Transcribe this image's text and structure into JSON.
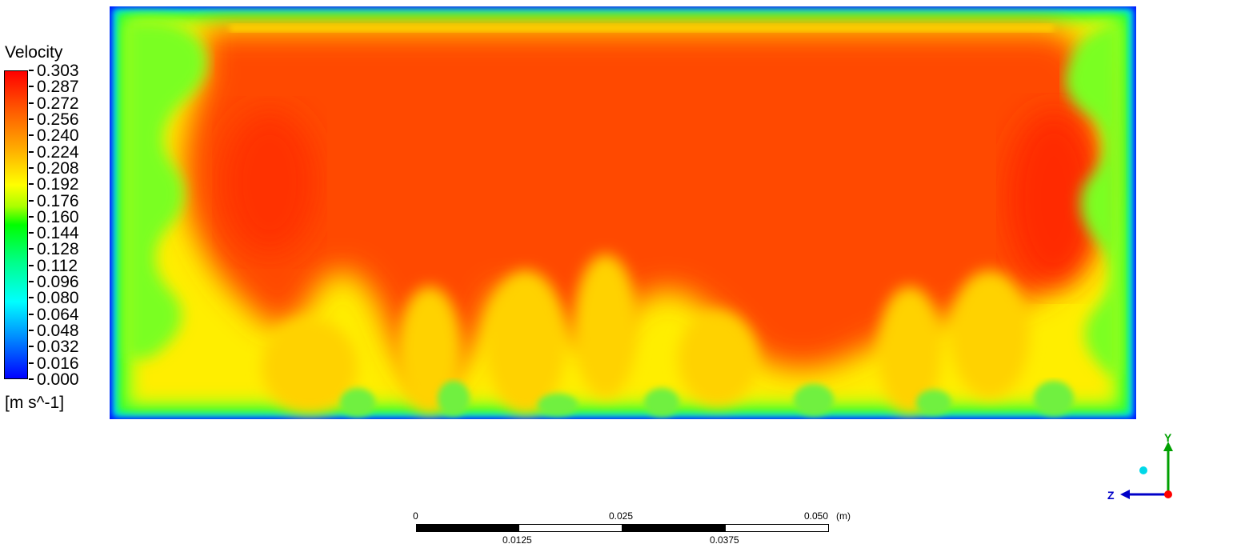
{
  "chart_data": {
    "type": "heatmap",
    "title": "",
    "variable": "Velocity",
    "units": "[m s^-1]",
    "colormap": [
      "#0000ff",
      "#00ffff",
      "#00ff00",
      "#ffff00",
      "#ff0000"
    ],
    "range": [
      0.0,
      0.303
    ],
    "legend_ticks": [
      "0.303",
      "0.287",
      "0.272",
      "0.256",
      "0.240",
      "0.224",
      "0.208",
      "0.192",
      "0.176",
      "0.160",
      "0.144",
      "0.128",
      "0.112",
      "0.096",
      "0.080",
      "0.064",
      "0.048",
      "0.032",
      "0.016",
      "0.000"
    ],
    "legend_placement": "left",
    "field_description": "Core flow ~0.27-0.30 (red/orange), wall boundary layers ~0.0-0.16 (blue to green), turbulent eddies near the bottom ~0.20-0.26 (yellow)"
  },
  "scale_bar": {
    "top_labels": [
      "0",
      "0.025",
      "0.050"
    ],
    "unit": "(m)",
    "bottom_labels": [
      "0.0125",
      "0.0375"
    ]
  },
  "axis_triad": {
    "y_label": "Y",
    "z_label": "Z",
    "y_color": "#00a000",
    "z_color": "#0000c8",
    "x_color": "#ff0000",
    "sphere_color": "#00d8e8"
  }
}
